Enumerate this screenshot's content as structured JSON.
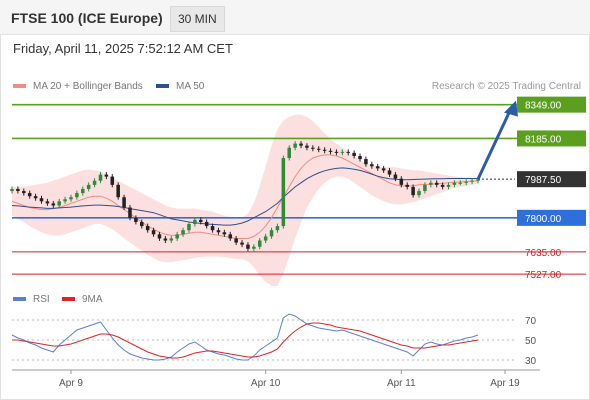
{
  "header": {
    "title": "FTSE 100 (ICE Europe)",
    "timeframe": "30 MIN"
  },
  "timestamp": "Friday, April 11, 2025 7:52:12 AM CET",
  "legend": {
    "ma20": {
      "label": "MA 20 + Bollinger Bands",
      "color": "#f28b82"
    },
    "ma50": {
      "label": "MA 50",
      "color": "#2f4f8f"
    }
  },
  "credit": "Research © 2025 Trading Central",
  "rsi_legend": {
    "rsi": {
      "label": "RSI",
      "color": "#5b7fd6"
    },
    "ma9": {
      "label": "9MA",
      "color": "#e02424"
    }
  },
  "chart_data": {
    "type": "line",
    "price": {
      "current": {
        "value": 7987.5,
        "label": "7987.50",
        "color": "#333333"
      },
      "levels": [
        {
          "value": 8349.0,
          "label": "8349.00",
          "color": "#5aa01e",
          "kind": "resistance"
        },
        {
          "value": 8185.0,
          "label": "8185.00",
          "color": "#5aa01e",
          "kind": "resistance"
        },
        {
          "value": 7800.0,
          "label": "7800.00",
          "color": "#2f6fdc",
          "kind": "pivot"
        },
        {
          "value": 7635.0,
          "label": "7635.00",
          "color": "#cc2222",
          "kind": "support"
        },
        {
          "value": 7527.0,
          "label": "7527.00",
          "color": "#cc2222",
          "kind": "support"
        }
      ],
      "ylim": [
        7450,
        8420
      ],
      "close_series": [
        7940,
        7930,
        7920,
        7905,
        7895,
        7880,
        7870,
        7860,
        7880,
        7890,
        7900,
        7920,
        7940,
        7960,
        7980,
        8010,
        8000,
        7960,
        7900,
        7850,
        7800,
        7780,
        7760,
        7740,
        7720,
        7700,
        7690,
        7700,
        7720,
        7740,
        7770,
        7790,
        7780,
        7760,
        7740,
        7730,
        7720,
        7700,
        7680,
        7670,
        7650,
        7660,
        7690,
        7710,
        7740,
        7760,
        8090,
        8140,
        8160,
        8150,
        8140,
        8135,
        8130,
        8125,
        8120,
        8115,
        8120,
        8115,
        8100,
        8085,
        8060,
        8050,
        8040,
        8030,
        8010,
        7990,
        7960,
        7950,
        7910,
        7930,
        7960,
        7970,
        7960,
        7950,
        7960,
        7970,
        7970,
        7975,
        7980,
        7987
      ],
      "ma20": [
        7880,
        7870,
        7860,
        7850,
        7845,
        7840,
        7840,
        7845,
        7850,
        7860,
        7870,
        7880,
        7890,
        7900,
        7905,
        7905,
        7895,
        7880,
        7860,
        7840,
        7820,
        7800,
        7780,
        7760,
        7745,
        7730,
        7720,
        7715,
        7715,
        7720,
        7725,
        7730,
        7730,
        7725,
        7720,
        7715,
        7710,
        7705,
        7700,
        7700,
        7700,
        7710,
        7730,
        7760,
        7800,
        7850,
        7900,
        7950,
        8000,
        8040,
        8070,
        8090,
        8100,
        8105,
        8105,
        8100,
        8090,
        8075,
        8060,
        8045,
        8030,
        8015,
        8000,
        7985,
        7970,
        7960,
        7955,
        7955,
        7955,
        7960,
        7962,
        7963,
        7965,
        7967,
        7970,
        7972,
        7974,
        7976,
        7978,
        7980
      ],
      "ma50": [
        7860,
        7858,
        7855,
        7852,
        7850,
        7848,
        7846,
        7846,
        7848,
        7850,
        7852,
        7855,
        7858,
        7860,
        7862,
        7862,
        7860,
        7858,
        7855,
        7850,
        7845,
        7840,
        7835,
        7830,
        7825,
        7815,
        7805,
        7795,
        7790,
        7785,
        7780,
        7776,
        7773,
        7770,
        7768,
        7766,
        7765,
        7765,
        7768,
        7775,
        7785,
        7800,
        7815,
        7830,
        7850,
        7870,
        7900,
        7925,
        7950,
        7970,
        7990,
        8005,
        8018,
        8028,
        8035,
        8040,
        8042,
        8040,
        8036,
        8030,
        8022,
        8012,
        8002,
        7995,
        7990,
        7987,
        7985,
        7985,
        7986,
        7987,
        7988,
        7989,
        7990,
        7990,
        7991,
        7991,
        7991,
        7991,
        7991,
        7991
      ],
      "bb_upper": [
        7950,
        7950,
        7950,
        7955,
        7960,
        7965,
        7970,
        7980,
        7990,
        8000,
        8010,
        8020,
        8030,
        8035,
        8030,
        8025,
        8010,
        7995,
        7980,
        7965,
        7950,
        7935,
        7920,
        7905,
        7890,
        7875,
        7860,
        7850,
        7845,
        7845,
        7845,
        7845,
        7840,
        7835,
        7830,
        7820,
        7810,
        7805,
        7800,
        7800,
        7820,
        7870,
        7950,
        8050,
        8150,
        8230,
        8270,
        8290,
        8300,
        8300,
        8290,
        8270,
        8240,
        8210,
        8180,
        8160,
        8140,
        8120,
        8100,
        8080,
        8065,
        8055,
        8050,
        8045,
        8045,
        8045,
        8040,
        8035,
        8030,
        8030,
        8025,
        8020,
        8015,
        8010,
        8005,
        8000,
        7998,
        7995,
        7993,
        7990
      ],
      "bb_lower": [
        7810,
        7795,
        7780,
        7760,
        7745,
        7730,
        7720,
        7715,
        7715,
        7720,
        7730,
        7740,
        7750,
        7760,
        7770,
        7770,
        7760,
        7745,
        7725,
        7700,
        7680,
        7660,
        7640,
        7620,
        7605,
        7590,
        7585,
        7585,
        7590,
        7595,
        7600,
        7605,
        7610,
        7612,
        7612,
        7612,
        7610,
        7605,
        7600,
        7600,
        7590,
        7560,
        7520,
        7490,
        7470,
        7470,
        7530,
        7610,
        7700,
        7780,
        7850,
        7900,
        7940,
        7970,
        7990,
        8000,
        8000,
        7990,
        7970,
        7950,
        7930,
        7910,
        7895,
        7880,
        7870,
        7865,
        7865,
        7870,
        7875,
        7885,
        7895,
        7905,
        7915,
        7925,
        7935,
        7945,
        7950,
        7955,
        7960,
        7965
      ],
      "forecast": [
        7987.5,
        8349.0
      ]
    },
    "rsi": {
      "ticks": [
        70,
        50,
        30
      ],
      "ylim": [
        20,
        80
      ],
      "rsi_series": [
        55,
        52,
        50,
        47,
        45,
        42,
        40,
        38,
        45,
        50,
        55,
        60,
        62,
        64,
        66,
        68,
        60,
        52,
        45,
        40,
        36,
        34,
        32,
        31,
        30,
        30,
        31,
        33,
        38,
        42,
        46,
        48,
        44,
        40,
        38,
        36,
        35,
        33,
        31,
        30,
        30,
        34,
        40,
        44,
        48,
        52,
        72,
        76,
        74,
        70,
        66,
        64,
        62,
        61,
        60,
        59,
        60,
        58,
        56,
        54,
        52,
        50,
        48,
        46,
        44,
        42,
        40,
        38,
        34,
        40,
        46,
        48,
        46,
        45,
        47,
        49,
        50,
        52,
        53,
        55
      ],
      "ma9_series": [
        50,
        50,
        49,
        48,
        47,
        46,
        45,
        44,
        44,
        45,
        46,
        48,
        50,
        52,
        54,
        56,
        56,
        55,
        53,
        50,
        47,
        44,
        41,
        38,
        36,
        34,
        33,
        32,
        32,
        33,
        35,
        37,
        38,
        39,
        39,
        38,
        37,
        36,
        35,
        34,
        33,
        33,
        34,
        36,
        38,
        41,
        48,
        54,
        59,
        63,
        66,
        67,
        67,
        66,
        65,
        63,
        62,
        61,
        60,
        59,
        57,
        55,
        53,
        51,
        49,
        47,
        45,
        44,
        42,
        42,
        42,
        43,
        44,
        45,
        45,
        46,
        47,
        48,
        49,
        50
      ]
    },
    "x_ticks": [
      {
        "label": "Apr 9",
        "index": 10
      },
      {
        "label": "Apr 10",
        "index": 43
      },
      {
        "label": "Apr 11",
        "index": 66
      },
      {
        "label": "Apr 19",
        "index": 80
      }
    ]
  }
}
